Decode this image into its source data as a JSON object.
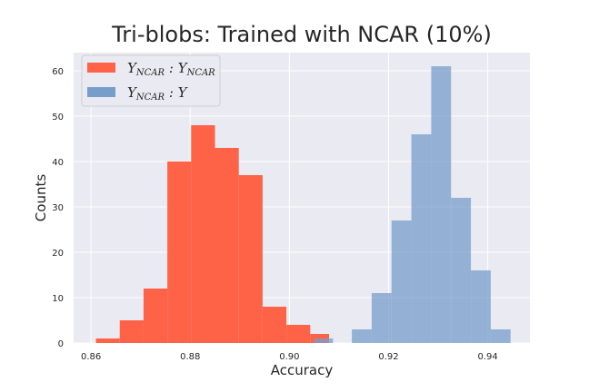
{
  "chart_data": {
    "type": "bar",
    "title": "Tri-blobs: Trained with NCAR (10%)",
    "xlabel": "Accuracy",
    "ylabel": "Counts",
    "xlim": [
      0.8565,
      0.9485
    ],
    "ylim": [
      0,
      64
    ],
    "xticks": [
      "0.86",
      "0.88",
      "0.90",
      "0.92",
      "0.94"
    ],
    "xtick_values": [
      0.86,
      0.88,
      0.9,
      0.92,
      0.94
    ],
    "yticks": [
      "0",
      "10",
      "20",
      "30",
      "40",
      "50",
      "60"
    ],
    "ytick_values": [
      0,
      10,
      20,
      30,
      40,
      50,
      60
    ],
    "grid": true,
    "legend_position": "top-left",
    "series": [
      {
        "name": "Y_NCAR : Y_NCAR",
        "color": "#ff6347",
        "bins": [
          {
            "x0": 0.861,
            "x1": 0.8658,
            "count": 1
          },
          {
            "x0": 0.8658,
            "x1": 0.8706,
            "count": 5
          },
          {
            "x0": 0.8706,
            "x1": 0.8754,
            "count": 12
          },
          {
            "x0": 0.8754,
            "x1": 0.8802,
            "count": 40
          },
          {
            "x0": 0.8802,
            "x1": 0.885,
            "count": 48
          },
          {
            "x0": 0.885,
            "x1": 0.8898,
            "count": 43
          },
          {
            "x0": 0.8898,
            "x1": 0.8946,
            "count": 37
          },
          {
            "x0": 0.8946,
            "x1": 0.8994,
            "count": 8
          },
          {
            "x0": 0.8994,
            "x1": 0.9042,
            "count": 4
          },
          {
            "x0": 0.9042,
            "x1": 0.908,
            "count": 2
          }
        ]
      },
      {
        "name": "Y_NCAR : Y",
        "color": "#779ecb",
        "bins": [
          {
            "x0": 0.905,
            "x1": 0.9088,
            "count": 1
          },
          {
            "x0": 0.9126,
            "x1": 0.9166,
            "count": 3
          },
          {
            "x0": 0.9166,
            "x1": 0.9206,
            "count": 11
          },
          {
            "x0": 0.9206,
            "x1": 0.9246,
            "count": 27
          },
          {
            "x0": 0.9246,
            "x1": 0.9286,
            "count": 46
          },
          {
            "x0": 0.9286,
            "x1": 0.9326,
            "count": 61
          },
          {
            "x0": 0.9326,
            "x1": 0.9366,
            "count": 32
          },
          {
            "x0": 0.9366,
            "x1": 0.9406,
            "count": 16
          },
          {
            "x0": 0.9406,
            "x1": 0.9446,
            "count": 3
          }
        ]
      }
    ]
  }
}
